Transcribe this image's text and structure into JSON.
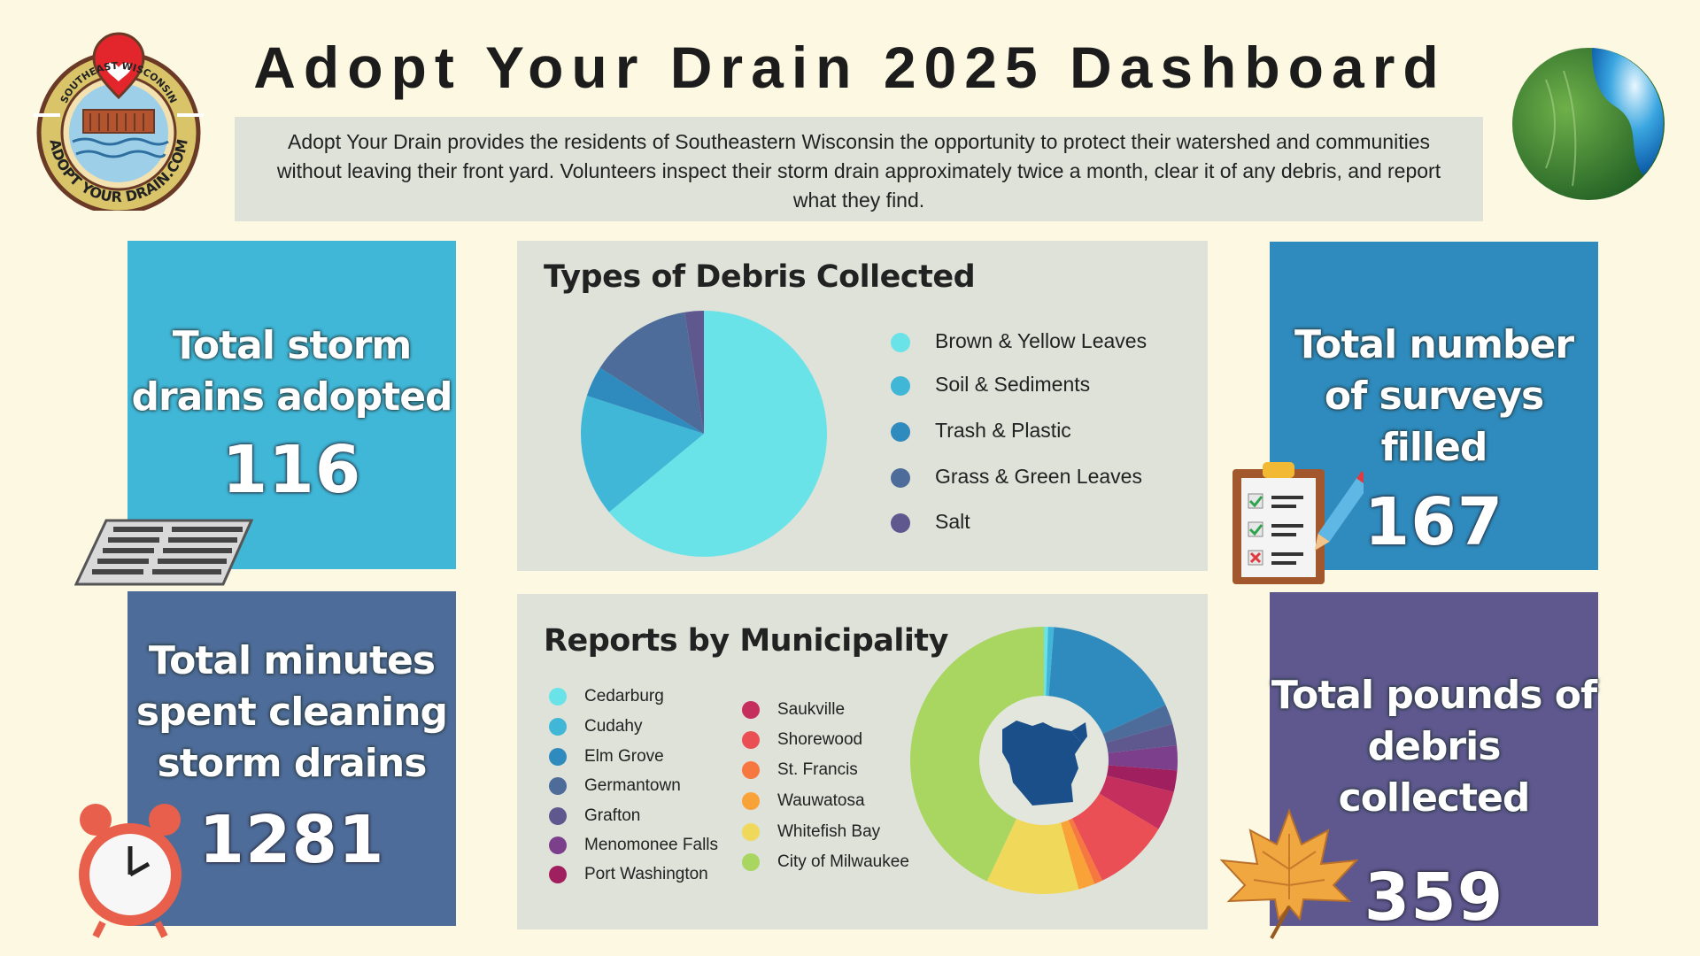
{
  "header": {
    "title": "Adopt Your Drain 2025 Dashboard",
    "description": "Adopt Your Drain provides the residents of Southeastern Wisconsin the opportunity to protect their watershed and communities without leaving their front yard. Volunteers inspect their storm drain approximately twice a month, clear it of any debris, and report what they find."
  },
  "logo": {
    "top_text": "SOUTHEAST WISCONSIN",
    "bottom_text": "ADOPT YOUR DRAIN.COM"
  },
  "stats": {
    "drains": {
      "label": "Total storm drains adopted",
      "value": "116",
      "color": "#41b7d7"
    },
    "surveys": {
      "label": "Total number of surveys filled",
      "value": "167",
      "color": "#2f8bbd"
    },
    "minutes": {
      "label": "Total minutes spent cleaning storm drains",
      "value": "1281",
      "color": "#4e6c99"
    },
    "pounds": {
      "label": "Total pounds of debris collected",
      "value": "359",
      "color": "#5e588e"
    }
  },
  "chart_data": [
    {
      "type": "pie",
      "title": "Types of Debris Collected",
      "categories": [
        "Brown & Yellow Leaves",
        "Soil & Sediments",
        "Trash & Plastic",
        "Grass & Green Leaves",
        "Salt"
      ],
      "values": [
        64,
        16,
        4,
        13.5,
        2.5
      ],
      "colors": [
        "#6ae3e8",
        "#41b7d7",
        "#2f8bbd",
        "#4e6c99",
        "#5e588e"
      ],
      "legend_position": "right"
    },
    {
      "type": "pie",
      "title": "Reports by Municipality",
      "categories": [
        "Cedarburg",
        "Cudahy",
        "Elm Grove",
        "Germantown",
        "Grafton",
        "Menomonee Falls",
        "Port Washington",
        "Saukville",
        "Shorewood",
        "St. Francis",
        "Wauwatosa",
        "Whitefish Bay",
        "City of Milwaukee"
      ],
      "values": [
        0.5,
        0.7,
        17,
        2.4,
        2.6,
        3,
        2.6,
        4.8,
        9.2,
        1,
        2,
        11.2,
        43
      ],
      "colors": [
        "#6ae3e8",
        "#41b7d7",
        "#2f8bbd",
        "#4e6c99",
        "#5e588e",
        "#7b3f8c",
        "#a0205f",
        "#c42f5e",
        "#ea4f55",
        "#f6773f",
        "#f9a237",
        "#efd85a",
        "#a8d660"
      ],
      "legend_position": "left"
    }
  ]
}
